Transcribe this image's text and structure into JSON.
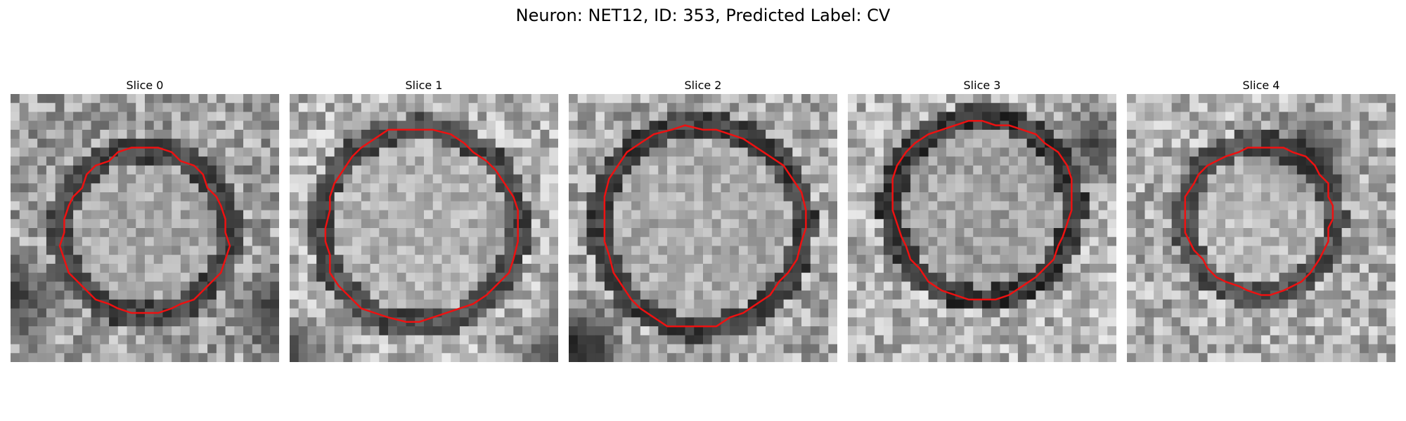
{
  "figure": {
    "title": "Neuron: NET12, ID: 353, Predicted Label: CV",
    "contour_color": "#ee1111"
  },
  "slices": [
    {
      "title": "Slice 0"
    },
    {
      "title": "Slice 1"
    },
    {
      "title": "Slice 2"
    },
    {
      "title": "Slice 3"
    },
    {
      "title": "Slice 4"
    }
  ]
}
